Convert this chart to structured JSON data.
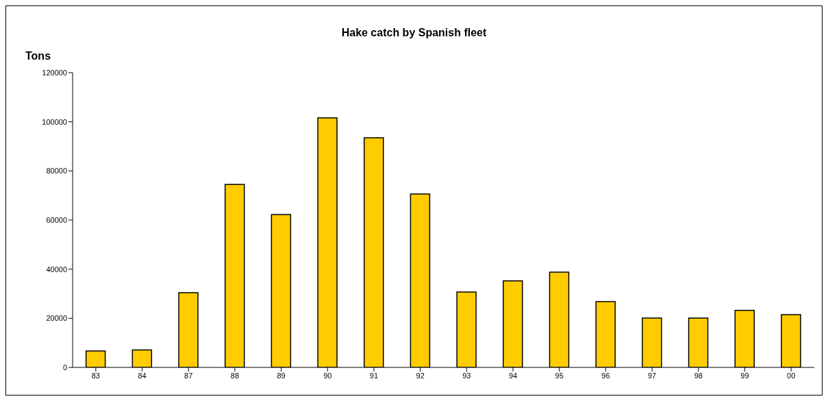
{
  "chart_data": {
    "type": "bar",
    "title": "Hake catch by Spanish fleet",
    "ylabel": "Tons",
    "categories": [
      "83",
      "84",
      "87",
      "88",
      "89",
      "90",
      "91",
      "92",
      "93",
      "94",
      "95",
      "96",
      "97",
      "98",
      "99",
      "00"
    ],
    "values": [
      6700,
      7100,
      30400,
      74500,
      62200,
      101600,
      93500,
      70600,
      30700,
      35200,
      38800,
      26800,
      20100,
      20100,
      23200,
      21500
    ],
    "color": "#ffcc00",
    "ylim": [
      0,
      120000
    ],
    "yticks": [
      0,
      20000,
      40000,
      60000,
      80000,
      100000,
      120000
    ],
    "grid": false
  }
}
